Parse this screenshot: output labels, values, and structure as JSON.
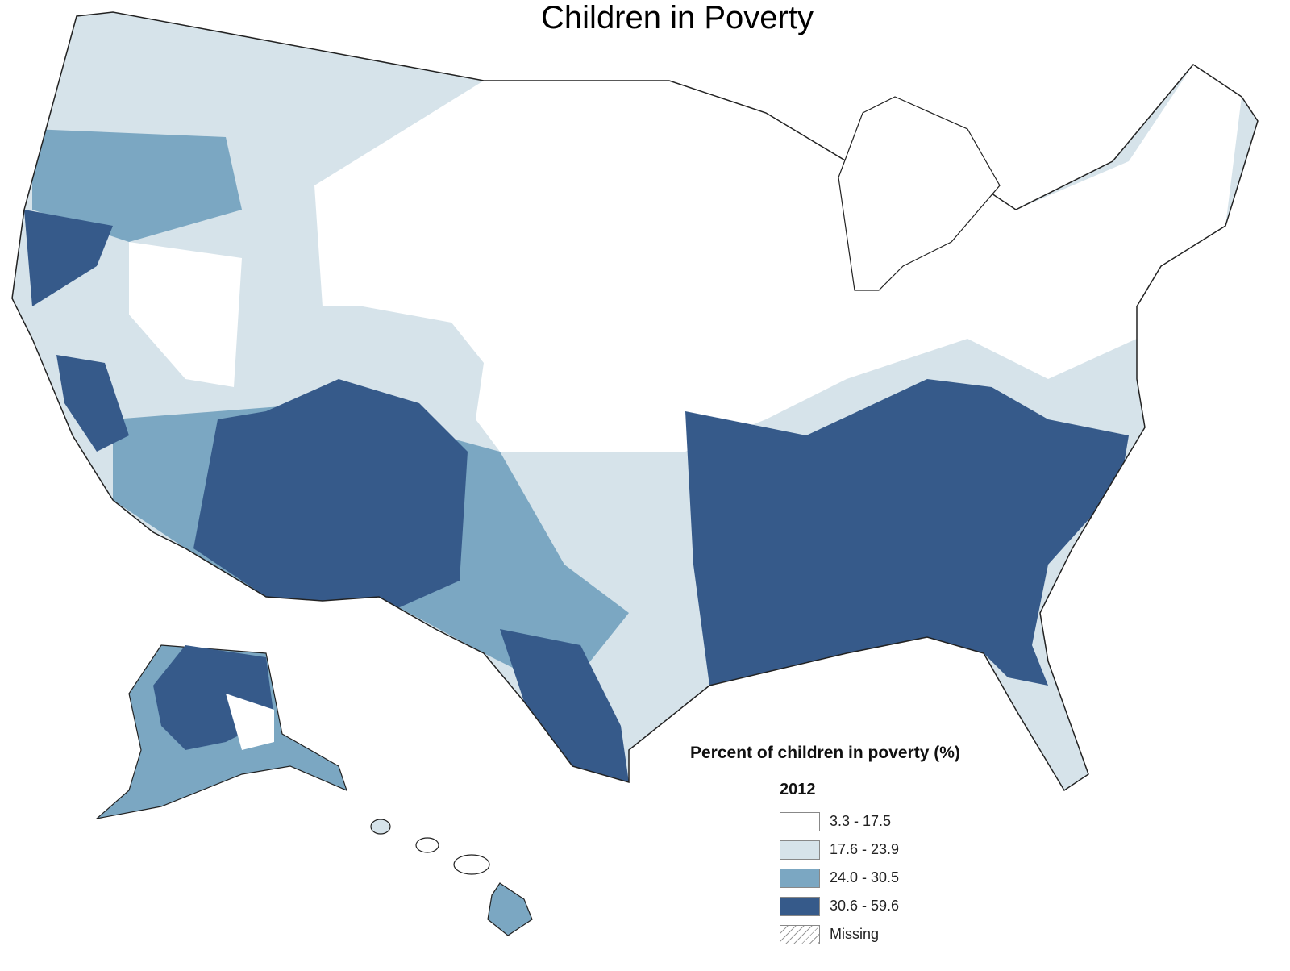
{
  "title": "Children in Poverty",
  "legend": {
    "title": "Percent of children in poverty (%)",
    "year": "2012",
    "classes": [
      {
        "label": "3.3 - 17.5",
        "color": "#ffffff"
      },
      {
        "label": "17.6 - 23.9",
        "color": "#d6e3ea"
      },
      {
        "label": "24.0 - 30.5",
        "color": "#7ba7c2"
      },
      {
        "label": "30.6 - 59.6",
        "color": "#365a8a"
      },
      {
        "label": "Missing",
        "color": "hatched"
      }
    ]
  }
}
